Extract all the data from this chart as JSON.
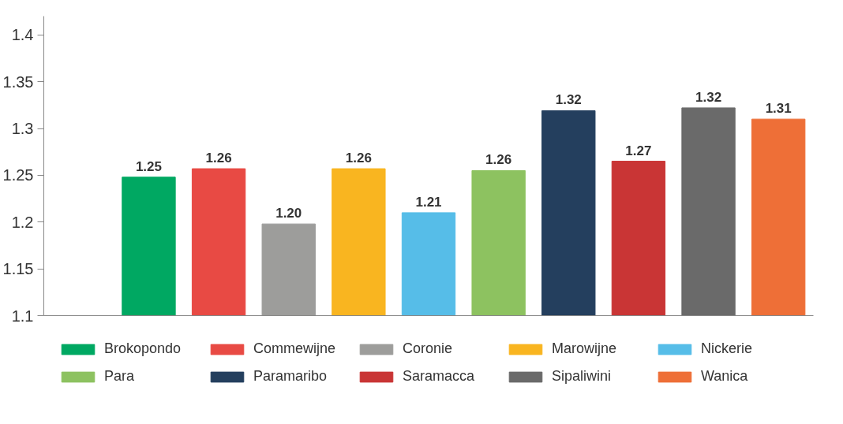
{
  "chart_data": {
    "type": "bar",
    "categories": [
      null
    ],
    "series": [
      {
        "name": "Brokopondo",
        "color": "#00a862",
        "values": [
          1.248
        ],
        "value_labels": [
          "1.25"
        ]
      },
      {
        "name": "Commewijne",
        "color": "#e84a44",
        "values": [
          1.257
        ],
        "value_labels": [
          "1.26"
        ]
      },
      {
        "name": "Coronie",
        "color": "#9d9d9b",
        "values": [
          1.198
        ],
        "value_labels": [
          "1.20"
        ]
      },
      {
        "name": "Marowijne",
        "color": "#f9b520",
        "values": [
          1.257
        ],
        "value_labels": [
          "1.26"
        ]
      },
      {
        "name": "Nickerie",
        "color": "#56bde8",
        "values": [
          1.21
        ],
        "value_labels": [
          "1.21"
        ]
      },
      {
        "name": "Para",
        "color": "#8dc260",
        "values": [
          1.255
        ],
        "value_labels": [
          "1.26"
        ]
      },
      {
        "name": "Paramaribo",
        "color": "#243f5e",
        "values": [
          1.319
        ],
        "value_labels": [
          "1.32"
        ]
      },
      {
        "name": "Saramacca",
        "color": "#c93535",
        "values": [
          1.265
        ],
        "value_labels": [
          "1.27"
        ]
      },
      {
        "name": "Sipaliwini",
        "color": "#6a6a6a",
        "values": [
          1.322
        ],
        "value_labels": [
          "1.32"
        ]
      },
      {
        "name": "Wanica",
        "color": "#ee6f37",
        "values": [
          1.31
        ],
        "value_labels": [
          "1.31"
        ]
      }
    ],
    "ylim": [
      1.1,
      1.42
    ],
    "yticks": [
      1.1,
      1.15,
      1.2,
      1.25,
      1.3,
      1.35,
      1.4
    ],
    "grid": false,
    "legend": "bottom",
    "tick_labels": "y"
  }
}
